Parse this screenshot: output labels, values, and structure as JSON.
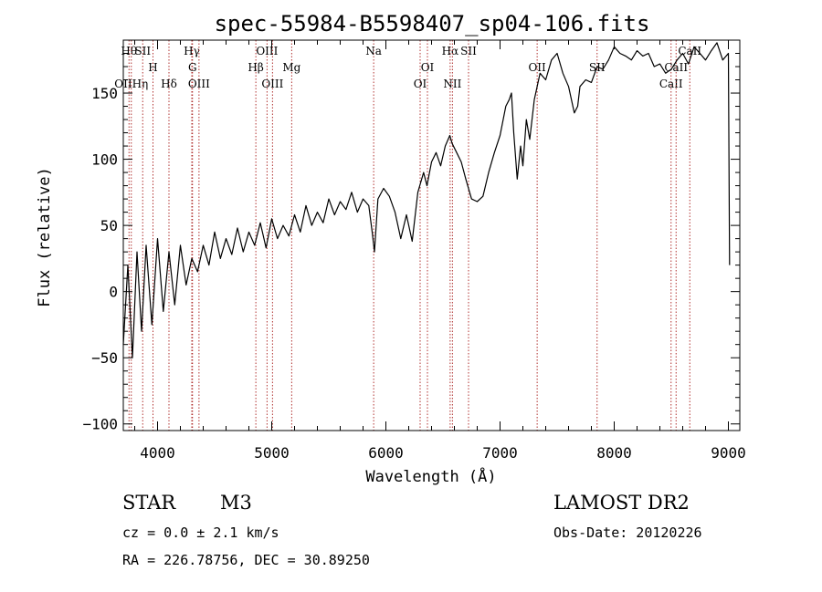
{
  "chart_data": {
    "type": "line",
    "title": "spec-55984-B5598407_sp04-106.fits",
    "xlabel": "Wavelength (Å)",
    "ylabel": "Flux (relative)",
    "xlim": [
      3700,
      9100
    ],
    "ylim": [
      -105,
      190
    ],
    "x_ticks": [
      4000,
      5000,
      6000,
      7000,
      8000,
      9000
    ],
    "x_tick_labels": [
      "4000",
      "5000",
      "6000",
      "7000",
      "8000",
      "9000"
    ],
    "y_ticks": [
      -100,
      -50,
      0,
      50,
      100,
      150
    ],
    "y_tick_labels": [
      "−100",
      "−50",
      "0",
      "50",
      "100",
      "150"
    ],
    "grid": false,
    "series": [
      {
        "x": [
          3700,
          3740,
          3780,
          3820,
          3860,
          3900,
          3950,
          4000,
          4050,
          4100,
          4150,
          4200,
          4250,
          4300,
          4350,
          4400,
          4450,
          4500,
          4550,
          4600,
          4650,
          4700,
          4750,
          4800,
          4850,
          4900,
          4950,
          5000,
          5050,
          5100,
          5150,
          5200,
          5250,
          5300,
          5350,
          5400,
          5450,
          5500,
          5550,
          5600,
          5650,
          5700,
          5750,
          5800,
          5850,
          5880,
          5900,
          5930,
          5980,
          6030,
          6080,
          6130,
          6180,
          6230,
          6280,
          6330,
          6360,
          6400,
          6440,
          6480,
          6520,
          6560,
          6580,
          6620,
          6660,
          6700,
          6750,
          6800,
          6850,
          6900,
          6950,
          7000,
          7050,
          7080,
          7100,
          7120,
          7150,
          7180,
          7200,
          7230,
          7260,
          7300,
          7350,
          7400,
          7450,
          7500,
          7550,
          7600,
          7650,
          7680,
          7700,
          7750,
          7800,
          7850,
          7900,
          7950,
          8000,
          8050,
          8100,
          8150,
          8200,
          8250,
          8300,
          8350,
          8400,
          8450,
          8500,
          8550,
          8600,
          8650,
          8700,
          8750,
          8800,
          8850,
          8900,
          8950,
          9000,
          9010
        ],
        "y": [
          -40,
          20,
          -50,
          30,
          -30,
          35,
          -25,
          40,
          -15,
          30,
          -10,
          35,
          5,
          25,
          15,
          35,
          20,
          45,
          25,
          40,
          28,
          48,
          30,
          45,
          35,
          52,
          33,
          55,
          40,
          50,
          42,
          58,
          45,
          65,
          50,
          60,
          52,
          70,
          58,
          68,
          62,
          75,
          60,
          70,
          65,
          45,
          30,
          70,
          78,
          72,
          60,
          40,
          58,
          38,
          75,
          90,
          80,
          98,
          105,
          95,
          110,
          118,
          112,
          105,
          98,
          85,
          70,
          68,
          72,
          90,
          105,
          118,
          140,
          145,
          150,
          120,
          85,
          110,
          95,
          130,
          115,
          145,
          165,
          160,
          175,
          180,
          165,
          155,
          135,
          140,
          155,
          160,
          158,
          170,
          168,
          175,
          185,
          180,
          178,
          175,
          182,
          178,
          180,
          170,
          172,
          165,
          168,
          175,
          180,
          172,
          185,
          180,
          175,
          182,
          188,
          175,
          180,
          20
        ]
      }
    ],
    "lines": [
      {
        "x": 3750,
        "label": "Hθ",
        "row": 1
      },
      {
        "x": 3770,
        "label": "OIIHη",
        "row": 3
      },
      {
        "x": 3870,
        "label": "SII",
        "row": 1
      },
      {
        "x": 3960,
        "label": "H",
        "row": 2
      },
      {
        "x": 4100,
        "label": "Hδ",
        "row": 3
      },
      {
        "x": 4300,
        "label": "Hγ",
        "row": 1
      },
      {
        "x": 4306,
        "label": "G",
        "row": 2
      },
      {
        "x": 4363,
        "label": "OIII",
        "row": 3
      },
      {
        "x": 4861,
        "label": "Hβ",
        "row": 2
      },
      {
        "x": 4959,
        "label": "OIII",
        "row": 1
      },
      {
        "x": 5007,
        "label": "OIII",
        "row": 3
      },
      {
        "x": 5175,
        "label": "Mg",
        "row": 2
      },
      {
        "x": 5893,
        "label": "Na",
        "row": 1
      },
      {
        "x": 6300,
        "label": "OI",
        "row": 3
      },
      {
        "x": 6364,
        "label": "OI",
        "row": 2
      },
      {
        "x": 6563,
        "label": "Hα",
        "row": 1
      },
      {
        "x": 6583,
        "label": "NII",
        "row": 3
      },
      {
        "x": 6724,
        "label": "SII",
        "row": 1
      },
      {
        "x": 7325,
        "label": "OII",
        "row": 2
      },
      {
        "x": 7850,
        "label": "SII",
        "row": 2
      },
      {
        "x": 8498,
        "label": "CaII",
        "row": 3
      },
      {
        "x": 8542,
        "label": "CaII",
        "row": 2
      },
      {
        "x": 8662,
        "label": "CaII",
        "row": 1
      }
    ]
  },
  "info": {
    "object_class": "STAR",
    "subclass": "M3",
    "survey": "LAMOST DR2",
    "cz": "cz = 0.0 ± 2.1 km/s",
    "obs_date": "Obs-Date: 20120226",
    "coords": "RA = 226.78756, DEC =  30.89250"
  }
}
